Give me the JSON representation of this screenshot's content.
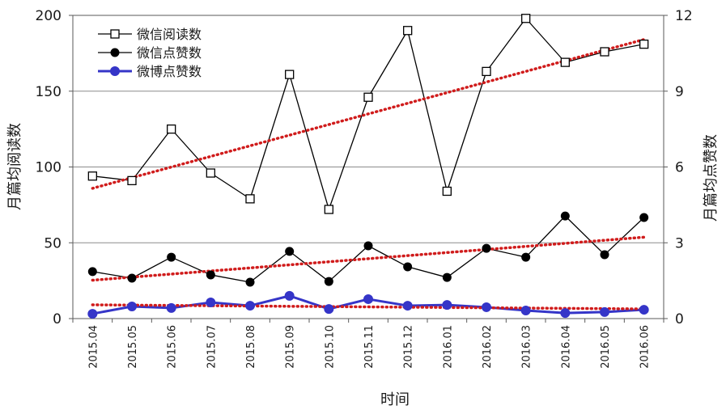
{
  "chart_data": {
    "type": "line",
    "title": "",
    "xlabel": "时间",
    "ylabel": "月篇均阅读数",
    "y2label": "月篇均点赞数",
    "categories": [
      "2015.04",
      "2015.05",
      "2015.06",
      "2015.07",
      "2015.08",
      "2015.09",
      "2015.10",
      "2015.11",
      "2015.12",
      "2016.01",
      "2016.02",
      "2016.03",
      "2016.04",
      "2016.05",
      "2016.06"
    ],
    "ylim": [
      0,
      200
    ],
    "yticks": [
      0,
      50,
      100,
      150,
      200
    ],
    "y2lim": [
      0,
      12
    ],
    "y2ticks": [
      0,
      3,
      6,
      9,
      12
    ],
    "grid": true,
    "legend": "top-left",
    "trendline": "linear",
    "trend_color": "#d01c1c",
    "series": [
      {
        "name": "微信阅读数",
        "axis": "left",
        "marker": "open-square",
        "color": "#000000",
        "values": [
          94,
          91,
          125,
          96,
          79,
          161,
          72,
          146,
          190,
          84,
          163,
          198,
          169,
          176,
          181
        ]
      },
      {
        "name": "微信点赞数",
        "axis": "right",
        "marker": "filled-circle",
        "color": "#000000",
        "values": [
          1.86,
          1.6,
          2.43,
          1.73,
          1.44,
          2.66,
          1.47,
          2.88,
          2.05,
          1.63,
          2.78,
          2.43,
          4.06,
          2.53,
          4.0
        ]
      },
      {
        "name": "微博点赞数",
        "axis": "right",
        "marker": "filled-circle",
        "color": "#3535c8",
        "values": [
          0.19,
          0.48,
          0.42,
          0.64,
          0.51,
          0.9,
          0.38,
          0.77,
          0.51,
          0.54,
          0.45,
          0.32,
          0.22,
          0.26,
          0.35
        ]
      }
    ]
  }
}
